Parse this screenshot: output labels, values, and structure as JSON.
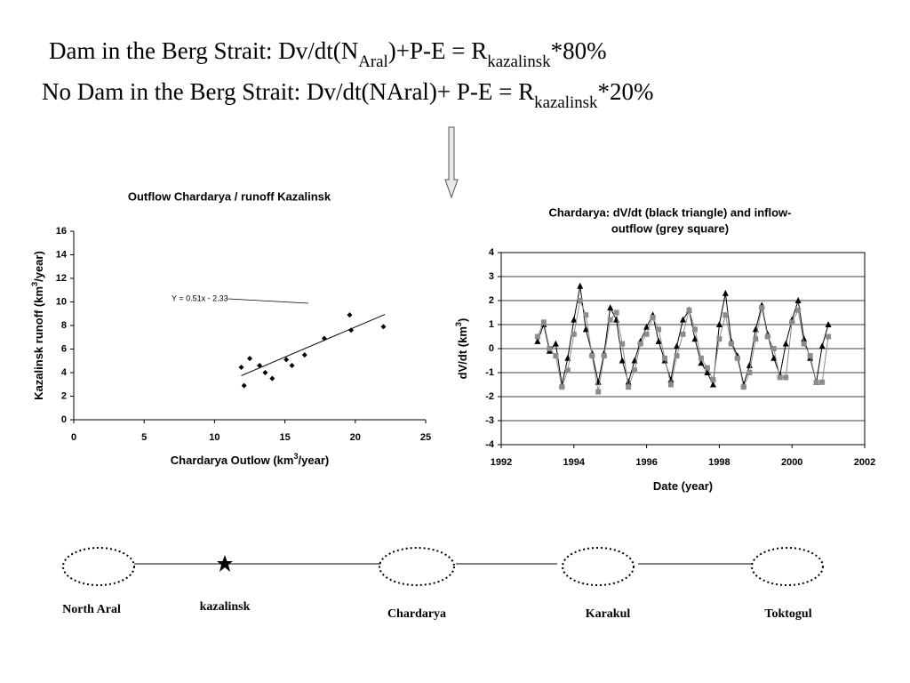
{
  "header": {
    "lines": [
      {
        "parts": [
          "Dam in the Berg Strait: Dv/dt(N",
          "Aral",
          ")+P-E = R",
          "kazalinsk",
          "*80%"
        ]
      },
      {
        "parts": [
          "No Dam in the Berg Strait: Dv/dt(NAral)+ P-E = R",
          "kazalinsk",
          "*20%"
        ]
      }
    ]
  },
  "chart_data": [
    {
      "type": "scatter",
      "title": [
        "Outflow Chardarya / runoff Kazalinsk"
      ],
      "xlabel": [
        "Chardarya Outlow (km",
        "3",
        "/year)"
      ],
      "ylabel": [
        "Kazalinsk runoff (km",
        "3",
        "/year)"
      ],
      "x": [
        11.9,
        12.1,
        12.5,
        13.2,
        13.6,
        14.1,
        15.1,
        15.5,
        16.4,
        17.8,
        19.6,
        19.7,
        22.0
      ],
      "y": [
        4.45,
        2.9,
        5.2,
        4.6,
        4.0,
        3.5,
        5.1,
        4.6,
        5.5,
        6.9,
        8.9,
        7.6,
        7.9
      ],
      "color": "#000000",
      "marker": "diamond",
      "trendline": {
        "slope": 0.51,
        "intercept": -2.33,
        "x_range": [
          11.9,
          22.1
        ],
        "label": "Y = 0.51x - 2.33"
      },
      "xlim": [
        0,
        25
      ],
      "xticks": [
        0,
        5,
        10,
        15,
        20,
        25
      ],
      "ylim": [
        0,
        16
      ],
      "yticks": [
        0,
        2,
        4,
        6,
        8,
        10,
        12,
        14,
        16
      ],
      "grid": false
    },
    {
      "type": "line",
      "title": [
        "Chardarya: dV/dt  (black triangle) and inflow-",
        "outflow (grey square)"
      ],
      "xlabel": [
        "Date (year)"
      ],
      "ylabel": [
        "dV/dt (km",
        "3",
        ")"
      ],
      "x": [
        1993.0,
        1993.17,
        1993.33,
        1993.5,
        1993.67,
        1993.83,
        1994.0,
        1994.17,
        1994.33,
        1994.5,
        1994.67,
        1994.83,
        1995.0,
        1995.17,
        1995.33,
        1995.5,
        1995.67,
        1995.83,
        1996.0,
        1996.17,
        1996.33,
        1996.5,
        1996.67,
        1996.83,
        1997.0,
        1997.17,
        1997.33,
        1997.5,
        1997.67,
        1997.83,
        1998.0,
        1998.17,
        1998.33,
        1998.5,
        1998.67,
        1998.83,
        1999.0,
        1999.17,
        1999.33,
        1999.5,
        1999.67,
        1999.83,
        2000.0,
        2000.17,
        2000.33,
        2000.5,
        2000.67,
        2000.83,
        2001.0
      ],
      "series": [
        {
          "name": "dV/dt",
          "color": "#000000",
          "marker": "triangle",
          "values": [
            0.3,
            1.0,
            -0.1,
            0.2,
            -1.5,
            -0.4,
            1.2,
            2.6,
            0.8,
            -0.2,
            -1.4,
            -0.2,
            1.7,
            1.2,
            -0.5,
            -1.4,
            -0.5,
            0.3,
            0.9,
            1.4,
            0.3,
            -0.5,
            -1.3,
            0.1,
            1.2,
            1.6,
            0.4,
            -0.6,
            -1.0,
            -1.5,
            1.0,
            2.3,
            0.3,
            -0.3,
            -1.5,
            -0.7,
            0.8,
            1.8,
            0.6,
            -0.4,
            -1.1,
            0.2,
            1.2,
            2.0,
            0.4,
            -0.4,
            -1.4,
            0.1,
            1.0
          ]
        },
        {
          "name": "inflow-outflow",
          "color": "#8c8c8c",
          "marker": "square",
          "values": [
            0.5,
            1.1,
            0.0,
            -0.3,
            -1.6,
            -0.9,
            0.6,
            2.0,
            1.4,
            -0.3,
            -1.8,
            -0.3,
            1.2,
            1.5,
            0.2,
            -1.6,
            -0.9,
            0.2,
            0.6,
            1.3,
            0.8,
            -0.4,
            -1.5,
            -0.3,
            0.6,
            1.6,
            0.8,
            -0.4,
            -0.8,
            -1.3,
            0.4,
            1.4,
            0.2,
            -0.4,
            -1.6,
            -1.0,
            0.4,
            1.7,
            0.5,
            0.0,
            -1.2,
            -1.2,
            1.1,
            1.6,
            0.2,
            -0.3,
            -1.4,
            -1.4,
            0.5
          ]
        }
      ],
      "xlim": [
        1992,
        2002
      ],
      "xticks": [
        1992,
        1994,
        1996,
        1998,
        2000,
        2002
      ],
      "ylim": [
        -4,
        4
      ],
      "yticks": [
        -4,
        -3,
        -2,
        -1,
        0,
        1,
        2,
        3,
        4
      ],
      "grid": true
    }
  ],
  "diagram": {
    "nodes": [
      {
        "label": "North Aral"
      },
      {
        "label": "kazalinsk"
      },
      {
        "label": "Chardarya"
      },
      {
        "label": "Karakul"
      },
      {
        "label": "Toktogul"
      }
    ]
  }
}
